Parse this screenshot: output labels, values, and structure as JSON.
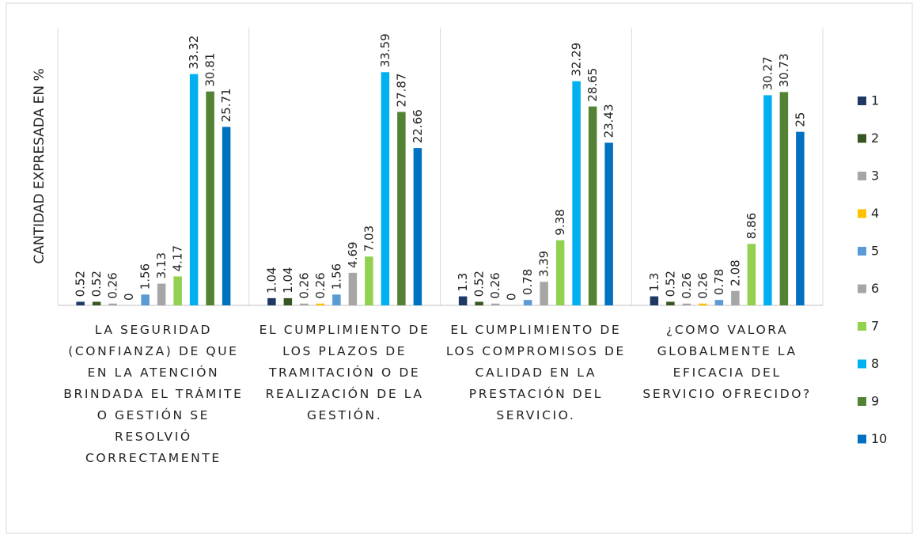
{
  "chart_data": {
    "type": "bar",
    "y_label": "CANTIDAD EXPRESADA EN %",
    "categories": [
      "LA SEGURIDAD (CONFIANZA) DE QUE EN LA ATENCIÓN BRINDADA EL TRÁMITE O GESTIÓN SE RESOLVIÓ CORRECTAMENTE",
      "EL CUMPLIMIENTO DE LOS PLAZOS DE TRAMITACIÓN O DE REALIZACIÓN DE LA GESTIÓN.",
      "EL CUMPLIMIENTO DE LOS COMPROMISOS DE CALIDAD EN LA PRESTACIÓN DEL SERVICIO.",
      "¿COMO VALORA GLOBALMENTE LA EFICACIA DEL SERVICIO OFRECIDO?"
    ],
    "series": [
      {
        "name": "1",
        "color": "#1f3864",
        "values": [
          0.52,
          1.04,
          1.3,
          1.3
        ]
      },
      {
        "name": "2",
        "color": "#375623",
        "values": [
          0.52,
          1.04,
          0.52,
          0.52
        ]
      },
      {
        "name": "3",
        "color": "#a5a5a5",
        "values": [
          0.26,
          0.26,
          0.26,
          0.26
        ]
      },
      {
        "name": "4",
        "color": "#ffc000",
        "values": [
          0,
          0.26,
          0,
          0.26
        ]
      },
      {
        "name": "5",
        "color": "#5b9bd5",
        "values": [
          1.56,
          1.56,
          0.78,
          0.78
        ]
      },
      {
        "name": "6",
        "color": "#a6a6a6",
        "values": [
          3.13,
          4.69,
          3.39,
          2.08
        ]
      },
      {
        "name": "7",
        "color": "#92d050",
        "values": [
          4.17,
          7.03,
          9.38,
          8.86
        ]
      },
      {
        "name": "8",
        "color": "#00b0f0",
        "values": [
          33.32,
          33.59,
          32.29,
          30.27
        ]
      },
      {
        "name": "9",
        "color": "#548235",
        "values": [
          30.81,
          27.87,
          28.65,
          30.73
        ]
      },
      {
        "name": "10",
        "color": "#0070c0",
        "values": [
          25.71,
          22.66,
          23.43,
          25
        ]
      }
    ],
    "ylim": [
      0,
      40
    ],
    "legend": "right"
  }
}
